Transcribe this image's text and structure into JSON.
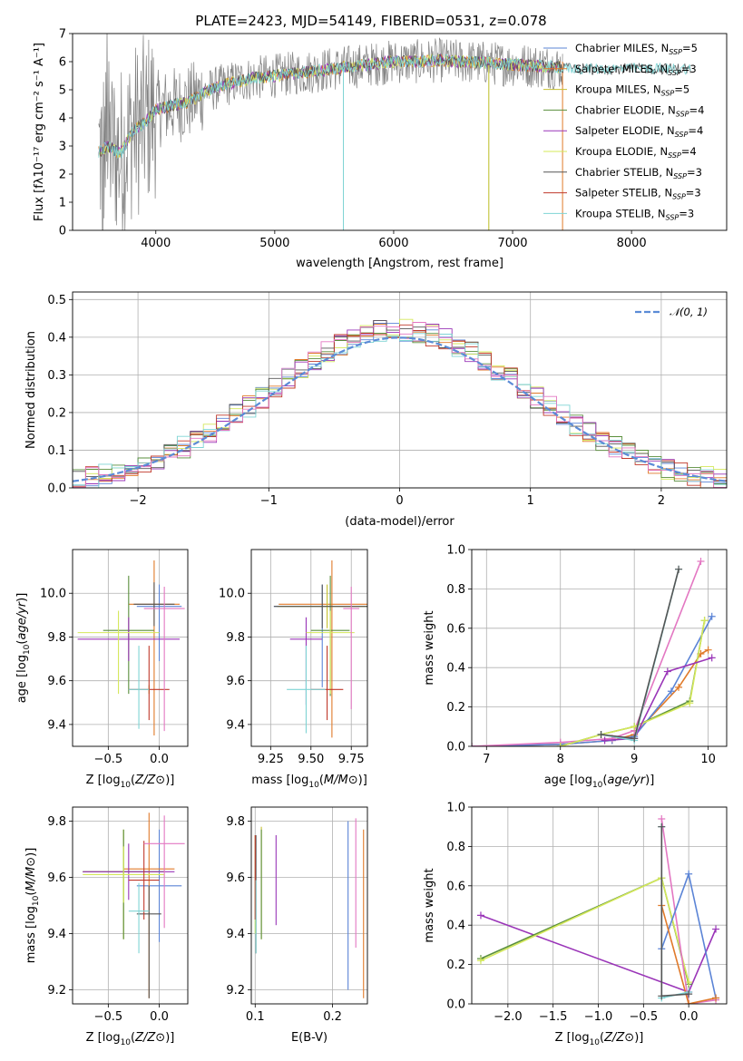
{
  "figure": {
    "title": "PLATE=2423, MJD=54149, FIBERID=0531, z=0.078"
  },
  "colors": {
    "Chabrier MILES": "#5b84d6",
    "Salpeter MILES": "#e07a2a",
    "Kroupa MILES": "#c6c130",
    "Chabrier ELODIE": "#5a8f3c",
    "Salpeter ELODIE": "#9a35b8",
    "Kroupa ELODIE": "#d4e85a",
    "Chabrier STELIB": "#555555",
    "Salpeter STELIB": "#c0392b",
    "Kroupa STELIB": "#7fd4d4",
    "data": "#808080",
    "grid": "#b0b0b0",
    "gauss": "#5b8bd6",
    "pink": "#e377c2",
    "lime": "#bcbd22"
  },
  "chart_data": [
    {
      "id": "spectrum",
      "type": "line",
      "title": "PLATE=2423, MJD=54149, FIBERID=0531, z=0.078",
      "xlabel": "wavelength [Angstrom, rest frame]",
      "ylabel": "Flux [fλ10⁻¹⁷ erg cm⁻² s⁻¹ A⁻¹]",
      "xlim": [
        3300,
        8800
      ],
      "ylim": [
        0,
        7
      ],
      "xticks": [
        4000,
        5000,
        6000,
        7000,
        8000
      ],
      "yticks": [
        0,
        1,
        2,
        3,
        4,
        5,
        6,
        7
      ],
      "continuum": {
        "x": [
          3520,
          3600,
          3700,
          3800,
          3900,
          4000,
          4100,
          4200,
          4300,
          4400,
          4600,
          4800,
          5000,
          5200,
          5400,
          5600,
          5800,
          6000,
          6200,
          6400,
          6600,
          6800,
          7000,
          7200,
          7400
        ],
        "y": [
          2.8,
          3.0,
          2.7,
          3.5,
          3.8,
          4.3,
          4.4,
          4.5,
          4.6,
          4.9,
          5.2,
          5.4,
          5.5,
          5.6,
          5.7,
          5.8,
          5.9,
          6.0,
          6.0,
          6.05,
          6.0,
          5.95,
          5.9,
          5.85,
          5.8
        ]
      },
      "legend": [
        "Chabrier MILES, N_SSP=5",
        "Salpeter MILES, N_SSP=3",
        "Kroupa MILES, N_SSP=5",
        "Chabrier ELODIE, N_SSP=4",
        "Salpeter ELODIE, N_SSP=4",
        "Kroupa ELODIE, N_SSP=4",
        "Chabrier STELIB, N_SSP=3",
        "Salpeter STELIB, N_SSP=3",
        "Kroupa STELIB, N_SSP=3"
      ]
    },
    {
      "id": "residuals",
      "type": "line",
      "xlabel": "(data-model)/error",
      "ylabel": "Normed distribution",
      "xlim": [
        -2.5,
        2.5
      ],
      "ylim": [
        0,
        0.52
      ],
      "xticks": [
        -2,
        -1,
        0,
        1,
        2
      ],
      "yticks": [
        0.0,
        0.1,
        0.2,
        0.3,
        0.4,
        0.5
      ],
      "legend": [
        "𝒩(0, 1)"
      ],
      "bin_width": 0.1
    },
    {
      "id": "age_vs_Z",
      "type": "errorbar",
      "xlabel": "Z [log₁₀(Z/Z⊙)]",
      "ylabel": "age  [log₁₀(age/yr)]",
      "xlim": [
        -0.85,
        0.28
      ],
      "ylim": [
        9.3,
        10.2
      ],
      "xticks": [
        -0.5,
        0.0
      ],
      "yticks": [
        9.4,
        9.6,
        9.8,
        10.0
      ],
      "points": [
        {
          "model": "Chabrier MILES",
          "x": 0.0,
          "y": 9.94,
          "xerr": 0.22,
          "yerr": [
            0.25,
            0.1
          ]
        },
        {
          "model": "Salpeter MILES",
          "x": -0.05,
          "y": 9.95,
          "xerr": 0.25,
          "yerr": [
            0.6,
            0.2
          ]
        },
        {
          "model": "Kroupa MILES",
          "x": -0.1,
          "y": 9.56,
          "xerr": 0.0,
          "yerr": [
            0.02,
            0.02
          ]
        },
        {
          "model": "Chabrier ELODIE",
          "x": -0.3,
          "y": 9.83,
          "xerr": 0.25,
          "yerr": [
            0.29,
            0.25
          ]
        },
        {
          "model": "Salpeter ELODIE",
          "x": -0.3,
          "y": 9.79,
          "xerr": 0.5,
          "yerr": [
            0.1,
            0.1
          ]
        },
        {
          "model": "Kroupa ELODIE",
          "x": -0.4,
          "y": 9.82,
          "xerr": 0.4,
          "yerr": [
            0.28,
            0.1
          ]
        },
        {
          "model": "Chabrier STELIB",
          "x": -0.05,
          "y": 9.95,
          "xerr": 0.2,
          "yerr": [
            0.1,
            0.1
          ]
        },
        {
          "model": "Salpeter STELIB",
          "x": -0.1,
          "y": 9.56,
          "xerr": 0.2,
          "yerr": [
            0.14,
            0.2
          ]
        },
        {
          "model": "Kroupa STELIB",
          "x": -0.2,
          "y": 9.56,
          "xerr": 0.1,
          "yerr": [
            0.18,
            0.2
          ]
        },
        {
          "model": "pink",
          "x": 0.05,
          "y": 9.93,
          "xerr": 0.2,
          "yerr": [
            0.56,
            0.1
          ]
        }
      ]
    },
    {
      "id": "age_vs_mass",
      "type": "errorbar",
      "xlabel": "mass [log₁₀(M/M⊙)]",
      "ylabel": "",
      "xlim": [
        9.13,
        9.85
      ],
      "ylim": [
        9.3,
        10.2
      ],
      "xticks": [
        9.25,
        9.5,
        9.75
      ],
      "yticks": [
        9.4,
        9.6,
        9.8,
        10.0
      ],
      "points": [
        {
          "model": "Chabrier MILES",
          "x": 9.57,
          "y": 9.94,
          "xerr": 0.3,
          "yerr": [
            0.37,
            0.1
          ]
        },
        {
          "model": "Salpeter MILES",
          "x": 9.63,
          "y": 9.95,
          "xerr": 0.33,
          "yerr": [
            0.61,
            0.2
          ]
        },
        {
          "model": "Kroupa MILES",
          "x": 9.6,
          "y": 9.94,
          "xerr": 0.31,
          "yerr": [
            0.1,
            0.1
          ]
        },
        {
          "model": "Chabrier ELODIE",
          "x": 9.62,
          "y": 9.83,
          "xerr": 0.12,
          "yerr": [
            0.3,
            0.25
          ]
        },
        {
          "model": "Salpeter ELODIE",
          "x": 9.47,
          "y": 9.79,
          "xerr": 0.1,
          "yerr": [
            0.3,
            0.1
          ]
        },
        {
          "model": "Kroupa ELODIE",
          "x": 9.62,
          "y": 9.82,
          "xerr": 0.15,
          "yerr": [
            0.28,
            0.1
          ]
        },
        {
          "model": "Chabrier STELIB",
          "x": 9.57,
          "y": 9.94,
          "xerr": 0.3,
          "yerr": [
            0.1,
            0.1
          ]
        },
        {
          "model": "Salpeter STELIB",
          "x": 9.6,
          "y": 9.56,
          "xerr": 0.1,
          "yerr": [
            0.14,
            0.2
          ]
        },
        {
          "model": "Kroupa STELIB",
          "x": 9.47,
          "y": 9.56,
          "xerr": 0.12,
          "yerr": [
            0.2,
            0.2
          ]
        },
        {
          "model": "pink",
          "x": 9.75,
          "y": 9.93,
          "xerr": 0.05,
          "yerr": [
            0.46,
            0.1
          ]
        }
      ]
    },
    {
      "id": "mw_vs_age",
      "type": "line",
      "xlabel": "age  [log₁₀(age/yr)]",
      "ylabel": "mass weight",
      "xlim": [
        6.8,
        10.25
      ],
      "ylim": [
        0,
        1.0
      ],
      "xticks": [
        7,
        8,
        9,
        10
      ],
      "yticks": [
        0.0,
        0.2,
        0.4,
        0.6,
        0.8,
        1.0
      ],
      "series": [
        {
          "model": "Salpeter MILES",
          "x": [
            6.8,
            8.0,
            8.7,
            9.0,
            9.6,
            9.9,
            10.0
          ],
          "y": [
            0.0,
            0.01,
            0.03,
            0.06,
            0.3,
            0.47,
            0.49
          ]
        },
        {
          "model": "Chabrier MILES",
          "x": [
            6.8,
            8.0,
            8.7,
            9.0,
            9.5,
            10.05
          ],
          "y": [
            0.0,
            0.01,
            0.03,
            0.05,
            0.28,
            0.66
          ]
        },
        {
          "model": "pink",
          "x": [
            6.8,
            8.0,
            8.7,
            9.0,
            9.9
          ],
          "y": [
            0.0,
            0.02,
            0.04,
            0.08,
            0.94
          ]
        },
        {
          "model": "Chabrier ELODIE",
          "x": [
            8.0,
            8.55,
            9.0,
            9.75,
            9.95
          ],
          "y": [
            0.0,
            0.06,
            0.1,
            0.23,
            0.64
          ]
        },
        {
          "model": "Kroupa ELODIE",
          "x": [
            8.0,
            8.55,
            9.0,
            9.75,
            9.95
          ],
          "y": [
            0.0,
            0.06,
            0.1,
            0.22,
            0.64
          ]
        },
        {
          "model": "Salpeter ELODIE",
          "x": [
            8.6,
            9.0,
            9.45,
            10.05
          ],
          "y": [
            0.03,
            0.04,
            0.38,
            0.45
          ]
        },
        {
          "model": "Kroupa STELIB",
          "x": [
            8.55,
            9.0,
            9.6
          ],
          "y": [
            0.06,
            0.03,
            0.9
          ]
        },
        {
          "model": "Chabrier STELIB",
          "x": [
            8.55,
            9.0,
            9.6
          ],
          "y": [
            0.06,
            0.04,
            0.9
          ]
        }
      ]
    },
    {
      "id": "mass_vs_Z",
      "type": "errorbar",
      "xlabel": "Z [log₁₀(Z/Z⊙)]",
      "ylabel": "mass [log₁₀(M/M⊙)]",
      "xlim": [
        -0.85,
        0.28
      ],
      "ylim": [
        9.15,
        9.85
      ],
      "xticks": [
        -0.5,
        0.0
      ],
      "yticks": [
        9.2,
        9.4,
        9.6,
        9.8
      ],
      "points": [
        {
          "model": "Chabrier MILES",
          "x": 0.0,
          "y": 9.57,
          "xerr": 0.22,
          "yerr": [
            0.2,
            0.2
          ]
        },
        {
          "model": "Salpeter MILES",
          "x": -0.1,
          "y": 9.63,
          "xerr": 0.25,
          "yerr": [
            0.46,
            0.2
          ]
        },
        {
          "model": "Kroupa MILES",
          "x": -0.35,
          "y": 9.62,
          "xerr": 0.4,
          "yerr": [
            0.24,
            0.15
          ]
        },
        {
          "model": "Chabrier ELODIE",
          "x": -0.35,
          "y": 9.62,
          "xerr": 0.4,
          "yerr": [
            0.24,
            0.15
          ]
        },
        {
          "model": "Salpeter ELODIE",
          "x": -0.3,
          "y": 9.62,
          "xerr": 0.45,
          "yerr": [
            0.1,
            0.1
          ]
        },
        {
          "model": "Kroupa ELODIE",
          "x": -0.35,
          "y": 9.61,
          "xerr": 0.4,
          "yerr": [
            0.1,
            0.1
          ]
        },
        {
          "model": "Chabrier STELIB",
          "x": -0.1,
          "y": 9.47,
          "xerr": 0.12,
          "yerr": [
            0.3,
            0.1
          ]
        },
        {
          "model": "Salpeter STELIB",
          "x": -0.15,
          "y": 9.59,
          "xerr": 0.15,
          "yerr": [
            0.14,
            0.14
          ]
        },
        {
          "model": "Kroupa STELIB",
          "x": -0.2,
          "y": 9.48,
          "xerr": 0.1,
          "yerr": [
            0.15,
            0.1
          ]
        },
        {
          "model": "pink",
          "x": 0.05,
          "y": 9.72,
          "xerr": 0.2,
          "yerr": [
            0.3,
            0.1
          ]
        }
      ]
    },
    {
      "id": "mass_vs_EBV",
      "type": "errorbar",
      "xlabel": "E(B-V)",
      "ylabel": "",
      "xlim": [
        0.095,
        0.245
      ],
      "ylim": [
        9.15,
        9.85
      ],
      "xticks": [
        0.1,
        0.2
      ],
      "yticks": [
        9.2,
        9.4,
        9.6,
        9.8
      ],
      "points": [
        {
          "model": "Chabrier MILES",
          "x": 0.22,
          "y": 9.5,
          "xerr": 0.0,
          "yerr": [
            0.3,
            0.3
          ]
        },
        {
          "model": "Salpeter MILES",
          "x": 0.24,
          "y": 9.47,
          "xerr": 0.0,
          "yerr": [
            0.3,
            0.3
          ]
        },
        {
          "model": "Kroupa MILES",
          "x": 0.108,
          "y": 9.58,
          "xerr": 0.0,
          "yerr": [
            0.2,
            0.2
          ]
        },
        {
          "model": "Chabrier ELODIE",
          "x": 0.108,
          "y": 9.58,
          "xerr": 0.0,
          "yerr": [
            0.2,
            0.19
          ]
        },
        {
          "model": "Salpeter ELODIE",
          "x": 0.127,
          "y": 9.59,
          "xerr": 0.0,
          "yerr": [
            0.16,
            0.16
          ]
        },
        {
          "model": "Kroupa ELODIE",
          "x": 0.1,
          "y": 9.6,
          "xerr": 0.0,
          "yerr": [
            0.2,
            0.15
          ]
        },
        {
          "model": "Chabrier STELIB",
          "x": 0.101,
          "y": 9.55,
          "xerr": 0.0,
          "yerr": [
            0.22,
            0.2
          ]
        },
        {
          "model": "Salpeter STELIB",
          "x": 0.1,
          "y": 9.6,
          "xerr": 0.0,
          "yerr": [
            0.15,
            0.15
          ]
        },
        {
          "model": "Kroupa STELIB",
          "x": 0.101,
          "y": 9.49,
          "xerr": 0.0,
          "yerr": [
            0.16,
            0.1
          ]
        },
        {
          "model": "pink",
          "x": 0.23,
          "y": 9.58,
          "xerr": 0.0,
          "yerr": [
            0.23,
            0.23
          ]
        }
      ]
    },
    {
      "id": "mw_vs_Z",
      "type": "line",
      "xlabel": "Z [log₁₀(Z/Z⊙)]",
      "ylabel": "mass weight",
      "xlim": [
        -2.4,
        0.42
      ],
      "ylim": [
        0,
        1.0
      ],
      "xticks": [
        -2.0,
        -1.5,
        -1.0,
        -0.5,
        0.0
      ],
      "yticks": [
        0.0,
        0.2,
        0.4,
        0.6,
        0.8,
        1.0
      ],
      "series": [
        {
          "model": "Salpeter ELODIE",
          "x": [
            -2.3,
            0.0,
            0.3
          ],
          "y": [
            0.45,
            0.06,
            0.38
          ]
        },
        {
          "model": "Chabrier ELODIE",
          "x": [
            -2.3,
            -0.3,
            0.0
          ],
          "y": [
            0.23,
            0.64,
            0.1
          ]
        },
        {
          "model": "Kroupa ELODIE",
          "x": [
            -2.3,
            -0.3,
            0.0
          ],
          "y": [
            0.22,
            0.64,
            0.11
          ]
        },
        {
          "model": "pink",
          "x": [
            -0.3,
            0.0,
            0.3
          ],
          "y": [
            0.94,
            0.0,
            0.02
          ]
        },
        {
          "model": "Chabrier MILES",
          "x": [
            -0.3,
            0.0,
            0.3
          ],
          "y": [
            0.28,
            0.66,
            0.03
          ]
        },
        {
          "model": "Salpeter MILES",
          "x": [
            -0.3,
            0.0,
            0.3
          ],
          "y": [
            0.5,
            0.0,
            0.03
          ]
        },
        {
          "model": "Kroupa STELIB",
          "x": [
            -0.3,
            -0.3,
            0.0
          ],
          "y": [
            0.9,
            0.03,
            0.06
          ]
        },
        {
          "model": "Chabrier STELIB",
          "x": [
            -0.3,
            -0.3,
            0.0
          ],
          "y": [
            0.9,
            0.04,
            0.05
          ]
        }
      ]
    }
  ]
}
